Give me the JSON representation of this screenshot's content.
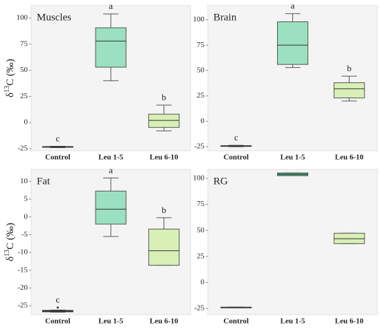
{
  "chart_data": [
    {
      "type": "box",
      "title": "Muscles",
      "y_label": {
        "prefix": "δ",
        "sup": "13",
        "suffix": "C (‰)"
      },
      "categories": [
        "Control",
        "Leu 1-5",
        "Leu 6-10"
      ],
      "colors": [
        "#555555",
        "#9be0c0",
        "#d8efb6"
      ],
      "boxes": [
        {
          "min": -24,
          "q1": -23.6,
          "median": -23.3,
          "q3": -23,
          "max": -22.7
        },
        {
          "min": 40,
          "q1": 53,
          "median": 78,
          "q3": 90.7,
          "max": 104
        },
        {
          "min": -8,
          "q1": -4.7,
          "median": 2,
          "q3": 8,
          "max": 16.7
        }
      ],
      "letters": [
        "c",
        "a",
        "b"
      ],
      "ylim": [
        -27,
        112
      ],
      "yticks": [
        -25,
        0,
        25,
        50,
        75,
        100
      ]
    },
    {
      "type": "box",
      "title": "Brain",
      "categories": [
        "Control",
        "Leu 1-5",
        "Leu 6-10"
      ],
      "colors": [
        "#555555",
        "#9be0c0",
        "#d8efb6"
      ],
      "boxes": [
        {
          "min": -25,
          "q1": -24.6,
          "median": -24.3,
          "q3": -24,
          "max": -23.6
        },
        {
          "min": 53,
          "q1": 56,
          "median": 75,
          "q3": 98,
          "max": 106
        },
        {
          "min": 20,
          "q1": 23,
          "median": 32,
          "q3": 38,
          "max": 44.5
        }
      ],
      "letters": [
        "c",
        "a",
        "b"
      ],
      "ylim": [
        -29,
        114
      ],
      "yticks": [
        -25,
        0,
        25,
        50,
        75,
        100
      ]
    },
    {
      "type": "box",
      "title": "Fat",
      "y_label": {
        "prefix": "δ",
        "sup": "13",
        "suffix": "C (‰)"
      },
      "categories": [
        "Control",
        "Leu 1-5",
        "Leu 6-10"
      ],
      "colors": [
        "#555555",
        "#9be0c0",
        "#d8efb6"
      ],
      "boxes": [
        {
          "min": -26.8,
          "q1": -26.7,
          "median": -26.5,
          "q3": -26.3,
          "max": -26.2,
          "outliers": [
            -25.5
          ]
        },
        {
          "min": -5.5,
          "q1": -2,
          "median": 2.2,
          "q3": 7.3,
          "max": 11
        },
        {
          "min": -13.6,
          "q1": -13.6,
          "median": -9.5,
          "q3": -3.4,
          "max": -0.2
        }
      ],
      "letters": [
        "c",
        "a",
        "b"
      ],
      "ylim": [
        -27.5,
        13.4
      ],
      "yticks": [
        -25,
        -20,
        -15,
        -10,
        -5,
        0,
        5,
        10
      ]
    },
    {
      "type": "box",
      "title": "RG",
      "categories": [
        "Control",
        "Leu 1-5",
        "Leu 6-10"
      ],
      "colors": [
        "#555555",
        "#3fae7f",
        "#d8efb6"
      ],
      "boxes": [
        {
          "min": -24.3,
          "q1": -24.2,
          "median": -24,
          "q3": -23.8,
          "max": -23.7
        },
        {
          "min": 102.7,
          "q1": 102.7,
          "median": 104,
          "q3": 105.3,
          "max": 105.3
        },
        {
          "min": 37.3,
          "q1": 37.3,
          "median": 42,
          "q3": 47.3,
          "max": 47.3
        }
      ],
      "ylim": [
        -31,
        108.7
      ],
      "yticks": [
        -25,
        0,
        25,
        50,
        75,
        100
      ]
    }
  ]
}
